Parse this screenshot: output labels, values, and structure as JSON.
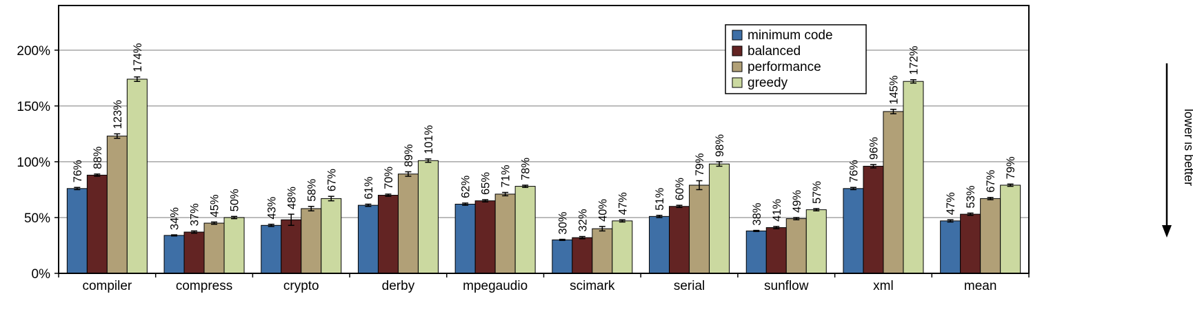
{
  "chart_data": {
    "type": "bar",
    "title": "",
    "categories": [
      "compiler",
      "compress",
      "crypto",
      "derby",
      "mpegaudio",
      "scimark",
      "serial",
      "sunflow",
      "xml",
      "mean"
    ],
    "series": [
      {
        "name": "minimum code",
        "color": "#3E6FA6",
        "values": [
          76,
          34,
          43,
          61,
          62,
          30,
          51,
          38,
          76,
          47
        ],
        "errors": [
          1,
          0.5,
          1,
          1,
          1,
          0.5,
          1,
          0.5,
          1,
          1
        ]
      },
      {
        "name": "balanced",
        "color": "#632423",
        "values": [
          88,
          37,
          48,
          70,
          65,
          32,
          60,
          41,
          96,
          53
        ],
        "errors": [
          1,
          1,
          5,
          1,
          1,
          1,
          1,
          1,
          1.5,
          1
        ]
      },
      {
        "name": "performance",
        "color": "#B1A077",
        "values": [
          123,
          45,
          58,
          89,
          71,
          40,
          79,
          49,
          145,
          67
        ],
        "errors": [
          2,
          1,
          2,
          2,
          1.5,
          2,
          4,
          1,
          2,
          1
        ]
      },
      {
        "name": "greedy",
        "color": "#CBD9A0",
        "values": [
          174,
          50,
          67,
          101,
          78,
          47,
          98,
          57,
          172,
          79
        ],
        "errors": [
          2,
          1,
          2,
          1.5,
          1,
          1,
          2,
          1,
          1.5,
          1
        ]
      }
    ],
    "value_label_suffix": "%",
    "yticks": [
      0,
      50,
      100,
      150,
      200
    ],
    "ytick_labels": [
      "0%",
      "50%",
      "100%",
      "150%",
      "200%"
    ],
    "ymax_percent": 240,
    "grid": true,
    "legend_position": "top-right",
    "annotation": "lower is better",
    "colors": {
      "gridline": "#a6a6a6",
      "axis": "#000000",
      "bar_border": "#000000",
      "background": "#ffffff"
    }
  }
}
